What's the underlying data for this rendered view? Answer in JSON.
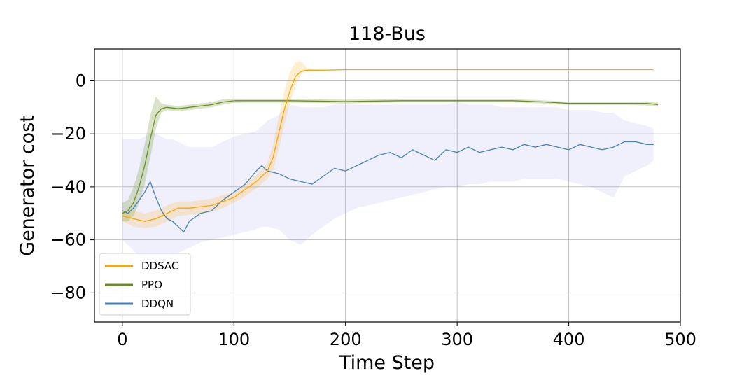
{
  "chart_data": {
    "type": "line",
    "title": "118-Bus",
    "xlabel": "Time Step",
    "ylabel": "Generator cost",
    "xlim": [
      -25,
      500
    ],
    "ylim": [
      -91,
      12
    ],
    "xticks": [
      0,
      100,
      200,
      300,
      400,
      500
    ],
    "yticks": [
      0,
      -20,
      -40,
      -60,
      -80
    ],
    "ytick_labels": [
      "0",
      "−20",
      "−40",
      "−60",
      "−80"
    ],
    "grid": true,
    "legend_position": "lower-left",
    "series": [
      {
        "name": "DDSAC",
        "color": "#FFA500",
        "x": [
          0,
          10,
          20,
          30,
          40,
          50,
          60,
          70,
          80,
          90,
          100,
          110,
          120,
          130,
          135,
          140,
          145,
          150,
          155,
          160,
          165,
          170,
          180,
          200,
          250,
          300,
          350,
          400,
          450,
          476
        ],
        "y": [
          -51,
          -52,
          -53,
          -52,
          -50,
          -48,
          -48,
          -47.5,
          -47,
          -45.5,
          -44,
          -41,
          -38,
          -34,
          -29,
          -20,
          -11,
          -4,
          1.5,
          3.5,
          4,
          4,
          4,
          4.2,
          4.2,
          4.2,
          4.2,
          4.2,
          4.2,
          4.2
        ],
        "band_lower": [
          -53,
          -55,
          -55.5,
          -55,
          -53,
          -51,
          -50.5,
          -50,
          -49.5,
          -48,
          -46,
          -43.5,
          -40.5,
          -37,
          -34,
          -26,
          -17,
          -9,
          -2,
          2.5,
          3.7,
          3.8,
          3.9,
          4.1,
          4.1,
          4.1,
          4.1,
          4.1,
          4.1,
          4.1
        ],
        "band_upper": [
          -49,
          -49,
          -50,
          -49,
          -47,
          -45.5,
          -45.5,
          -45,
          -44.5,
          -43,
          -42,
          -38.5,
          -35.5,
          -31,
          -24,
          -14,
          -4,
          3,
          7,
          7.5,
          5,
          4.3,
          4.2,
          4.3,
          4.3,
          4.3,
          4.3,
          4.3,
          4.3,
          4.3
        ]
      },
      {
        "name": "PPO",
        "color": "#6B8E23",
        "x": [
          0,
          5,
          10,
          15,
          20,
          25,
          30,
          35,
          40,
          50,
          60,
          70,
          80,
          90,
          100,
          110,
          150,
          200,
          250,
          300,
          350,
          380,
          400,
          450,
          470,
          480
        ],
        "y": [
          -50,
          -49,
          -46,
          -40,
          -32,
          -22,
          -13,
          -10.5,
          -10,
          -10.5,
          -10,
          -9.5,
          -9,
          -8,
          -7.5,
          -7.5,
          -7.5,
          -7.8,
          -7.5,
          -7.5,
          -7.5,
          -8,
          -8.5,
          -8.5,
          -8.5,
          -9
        ],
        "band_lower": [
          -53,
          -53,
          -51,
          -46,
          -39,
          -29,
          -18,
          -12,
          -11,
          -11.5,
          -11,
          -10.5,
          -10,
          -9,
          -8.3,
          -8.2,
          -8.2,
          -8.5,
          -8.1,
          -8.1,
          -8.1,
          -8.6,
          -9.1,
          -9.1,
          -9.3,
          -9.8
        ],
        "band_upper": [
          -46,
          -45,
          -40,
          -33,
          -24,
          -13,
          -6,
          -8.5,
          -9,
          -9.5,
          -9,
          -8.5,
          -8,
          -7,
          -6.7,
          -6.8,
          -6.8,
          -7.1,
          -6.9,
          -6.9,
          -6.9,
          -7.4,
          -7.9,
          -7.9,
          -7.7,
          -8.2
        ]
      },
      {
        "name": "DDQN",
        "color": "#4682B4",
        "x": [
          0,
          5,
          10,
          15,
          20,
          25,
          30,
          35,
          40,
          45,
          50,
          55,
          60,
          70,
          80,
          90,
          100,
          110,
          120,
          125,
          130,
          140,
          150,
          160,
          170,
          180,
          190,
          200,
          210,
          220,
          230,
          240,
          250,
          260,
          270,
          280,
          290,
          300,
          310,
          320,
          330,
          340,
          350,
          360,
          370,
          380,
          390,
          400,
          410,
          420,
          430,
          440,
          450,
          460,
          470,
          476
        ],
        "y": [
          -49,
          -50,
          -48,
          -45,
          -42,
          -38,
          -44,
          -49,
          -52,
          -53,
          -55,
          -57,
          -53,
          -50,
          -49,
          -45,
          -42,
          -39,
          -34,
          -32,
          -34,
          -35,
          -37,
          -38,
          -39,
          -36,
          -33,
          -34,
          -32,
          -30,
          -28,
          -27,
          -29,
          -26,
          -28,
          -30,
          -26,
          -27,
          -25,
          -27,
          -26,
          -25,
          -26,
          -24,
          -25,
          -24,
          -25,
          -26,
          -24,
          -25,
          -26,
          -25,
          -23,
          -23,
          -24,
          -24
        ],
        "band_lower": [
          -60,
          -62,
          -64,
          -66,
          -68,
          -70,
          -71,
          -70,
          -68,
          -66,
          -65,
          -64,
          -63,
          -61,
          -60,
          -59,
          -58,
          -57,
          -56,
          -55,
          -55,
          -56,
          -60,
          -62,
          -58,
          -55,
          -52,
          -50,
          -48,
          -47,
          -46,
          -45,
          -44,
          -43,
          -42,
          -41,
          -40,
          -40,
          -39,
          -39,
          -38,
          -38,
          -38,
          -37,
          -37,
          -37,
          -37,
          -38,
          -39,
          -40,
          -42,
          -44,
          -36,
          -34,
          -32,
          -30
        ],
        "band_upper": [
          -22,
          -22,
          -22,
          -22,
          -21,
          -20,
          -20,
          -21,
          -22,
          -22,
          -23,
          -24,
          -25,
          -25,
          -25,
          -23,
          -21,
          -20,
          -19,
          -17,
          -15,
          -13,
          -9,
          -10,
          -10,
          -10,
          -9,
          -9,
          -9,
          -9,
          -9,
          -9,
          -9,
          -9,
          -9,
          -9,
          -9,
          -8,
          -9,
          -9,
          -9,
          -10,
          -10,
          -10,
          -10,
          -10,
          -10,
          -11,
          -11,
          -11,
          -12,
          -12,
          -15,
          -16,
          -17,
          -18
        ]
      }
    ]
  }
}
